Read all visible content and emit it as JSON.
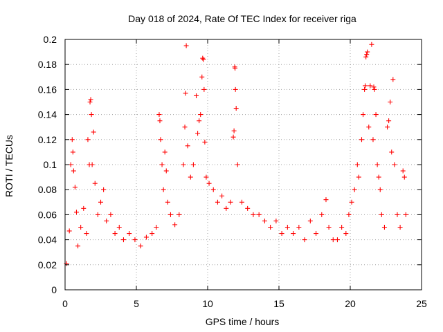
{
  "chart_data": {
    "type": "scatter",
    "title": "Day 018 of 2024, Rate Of TEC Index for receiver riga",
    "xlabel": "GPS time / hours",
    "ylabel": "ROTI / TECUs",
    "xlim": [
      0,
      25
    ],
    "ylim": [
      0,
      0.2
    ],
    "xticks": [
      0,
      5,
      10,
      15,
      20,
      25
    ],
    "yticks": [
      0,
      0.02,
      0.04,
      0.06,
      0.08,
      0.1,
      0.12,
      0.14,
      0.16,
      0.18,
      0.2
    ],
    "grid": true,
    "marker": "plus",
    "color": "#ff0000",
    "series": [
      {
        "points": [
          [
            0.1,
            0.021
          ],
          [
            0.3,
            0.047
          ],
          [
            0.4,
            0.1
          ],
          [
            0.5,
            0.12
          ],
          [
            0.55,
            0.11
          ],
          [
            0.6,
            0.095
          ],
          [
            0.7,
            0.082
          ],
          [
            0.8,
            0.062
          ],
          [
            0.9,
            0.035
          ],
          [
            1.1,
            0.05
          ],
          [
            1.3,
            0.065
          ],
          [
            1.5,
            0.045
          ],
          [
            1.6,
            0.12
          ],
          [
            1.7,
            0.1
          ],
          [
            1.75,
            0.15
          ],
          [
            1.8,
            0.152
          ],
          [
            1.85,
            0.14
          ],
          [
            1.9,
            0.1
          ],
          [
            2.0,
            0.126
          ],
          [
            2.1,
            0.085
          ],
          [
            2.3,
            0.06
          ],
          [
            2.5,
            0.07
          ],
          [
            2.7,
            0.08
          ],
          [
            2.9,
            0.055
          ],
          [
            3.2,
            0.06
          ],
          [
            3.5,
            0.045
          ],
          [
            3.8,
            0.05
          ],
          [
            4.1,
            0.04
          ],
          [
            4.5,
            0.045
          ],
          [
            4.9,
            0.04
          ],
          [
            5.3,
            0.035
          ],
          [
            5.7,
            0.042
          ],
          [
            6.1,
            0.045
          ],
          [
            6.4,
            0.05
          ],
          [
            6.6,
            0.14
          ],
          [
            6.65,
            0.135
          ],
          [
            6.7,
            0.12
          ],
          [
            6.8,
            0.1
          ],
          [
            6.9,
            0.08
          ],
          [
            7.0,
            0.11
          ],
          [
            7.1,
            0.095
          ],
          [
            7.2,
            0.07
          ],
          [
            7.4,
            0.06
          ],
          [
            7.7,
            0.052
          ],
          [
            8.0,
            0.06
          ],
          [
            8.3,
            0.1
          ],
          [
            8.4,
            0.13
          ],
          [
            8.45,
            0.157
          ],
          [
            8.5,
            0.195
          ],
          [
            8.6,
            0.115
          ],
          [
            8.8,
            0.09
          ],
          [
            9.0,
            0.1
          ],
          [
            9.2,
            0.155
          ],
          [
            9.3,
            0.125
          ],
          [
            9.4,
            0.135
          ],
          [
            9.5,
            0.14
          ],
          [
            9.6,
            0.17
          ],
          [
            9.65,
            0.185
          ],
          [
            9.7,
            0.184
          ],
          [
            9.75,
            0.16
          ],
          [
            9.8,
            0.118
          ],
          [
            9.9,
            0.09
          ],
          [
            10.1,
            0.085
          ],
          [
            10.4,
            0.08
          ],
          [
            10.7,
            0.07
          ],
          [
            11.0,
            0.075
          ],
          [
            11.3,
            0.065
          ],
          [
            11.6,
            0.07
          ],
          [
            11.8,
            0.122
          ],
          [
            11.85,
            0.127
          ],
          [
            11.9,
            0.178
          ],
          [
            11.92,
            0.177
          ],
          [
            11.95,
            0.16
          ],
          [
            12.0,
            0.145
          ],
          [
            12.1,
            0.1
          ],
          [
            12.4,
            0.07
          ],
          [
            12.8,
            0.065
          ],
          [
            13.2,
            0.06
          ],
          [
            13.6,
            0.06
          ],
          [
            14.0,
            0.055
          ],
          [
            14.4,
            0.05
          ],
          [
            14.8,
            0.055
          ],
          [
            15.2,
            0.045
          ],
          [
            15.6,
            0.05
          ],
          [
            16.0,
            0.045
          ],
          [
            16.4,
            0.05
          ],
          [
            16.8,
            0.04
          ],
          [
            17.2,
            0.055
          ],
          [
            17.6,
            0.045
          ],
          [
            18.0,
            0.06
          ],
          [
            18.3,
            0.072
          ],
          [
            18.5,
            0.05
          ],
          [
            18.8,
            0.04
          ],
          [
            19.1,
            0.04
          ],
          [
            19.4,
            0.05
          ],
          [
            19.7,
            0.045
          ],
          [
            19.9,
            0.06
          ],
          [
            20.1,
            0.07
          ],
          [
            20.3,
            0.08
          ],
          [
            20.5,
            0.1
          ],
          [
            20.6,
            0.09
          ],
          [
            20.8,
            0.12
          ],
          [
            20.9,
            0.14
          ],
          [
            21.0,
            0.16
          ],
          [
            21.05,
            0.163
          ],
          [
            21.1,
            0.186
          ],
          [
            21.15,
            0.188
          ],
          [
            21.2,
            0.19
          ],
          [
            21.3,
            0.13
          ],
          [
            21.4,
            0.163
          ],
          [
            21.5,
            0.196
          ],
          [
            21.6,
            0.12
          ],
          [
            21.65,
            0.162
          ],
          [
            21.7,
            0.16
          ],
          [
            21.8,
            0.14
          ],
          [
            21.9,
            0.1
          ],
          [
            22.0,
            0.09
          ],
          [
            22.1,
            0.08
          ],
          [
            22.2,
            0.06
          ],
          [
            22.4,
            0.05
          ],
          [
            22.6,
            0.13
          ],
          [
            22.7,
            0.135
          ],
          [
            22.8,
            0.15
          ],
          [
            22.9,
            0.11
          ],
          [
            23.0,
            0.168
          ],
          [
            23.1,
            0.1
          ],
          [
            23.3,
            0.06
          ],
          [
            23.5,
            0.05
          ],
          [
            23.7,
            0.095
          ],
          [
            23.8,
            0.09
          ],
          [
            23.9,
            0.06
          ]
        ]
      }
    ]
  }
}
